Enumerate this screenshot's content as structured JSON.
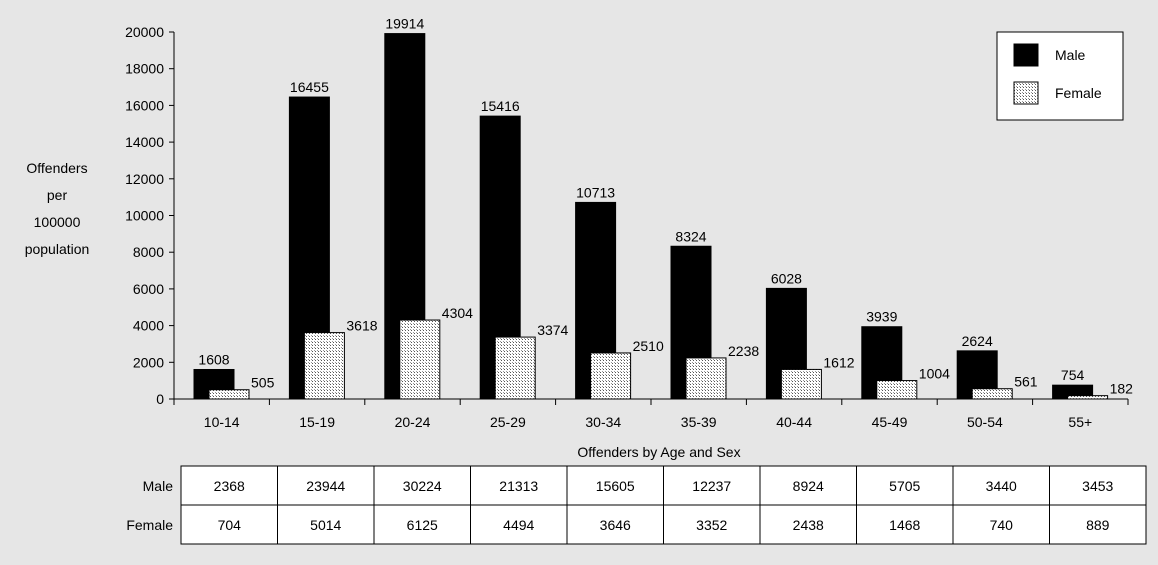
{
  "chart_data": {
    "type": "bar",
    "ylabel_lines": [
      "Offenders",
      "per",
      "100000",
      "population"
    ],
    "xlabel": "Offenders by Age and Sex",
    "ylim": [
      0,
      20000
    ],
    "yticks": [
      0,
      2000,
      4000,
      6000,
      8000,
      10000,
      12000,
      14000,
      16000,
      18000,
      20000
    ],
    "categories": [
      "10-14",
      "15-19",
      "20-24",
      "25-29",
      "30-34",
      "35-39",
      "40-44",
      "45-49",
      "50-54",
      "55+"
    ],
    "series": [
      {
        "name": "Male",
        "color": "#000000",
        "pattern": "solid",
        "values": [
          1608,
          16455,
          19914,
          15416,
          10713,
          8324,
          6028,
          3939,
          2624,
          754
        ]
      },
      {
        "name": "Female",
        "color": "#ffffff",
        "pattern": "dotted-grid",
        "values": [
          505,
          3618,
          4304,
          3374,
          2510,
          2238,
          1612,
          1004,
          561,
          182
        ]
      }
    ],
    "legend_position": "top-right",
    "grid": false
  },
  "table": {
    "rows": [
      {
        "label": "Male",
        "values": [
          "2368",
          "23944",
          "30224",
          "21313",
          "15605",
          "12237",
          "8924",
          "5705",
          "3440",
          "3453"
        ]
      },
      {
        "label": "Female",
        "values": [
          "704",
          "5014",
          "6125",
          "4494",
          "3646",
          "3352",
          "2438",
          "1468",
          "740",
          "889"
        ]
      }
    ]
  }
}
